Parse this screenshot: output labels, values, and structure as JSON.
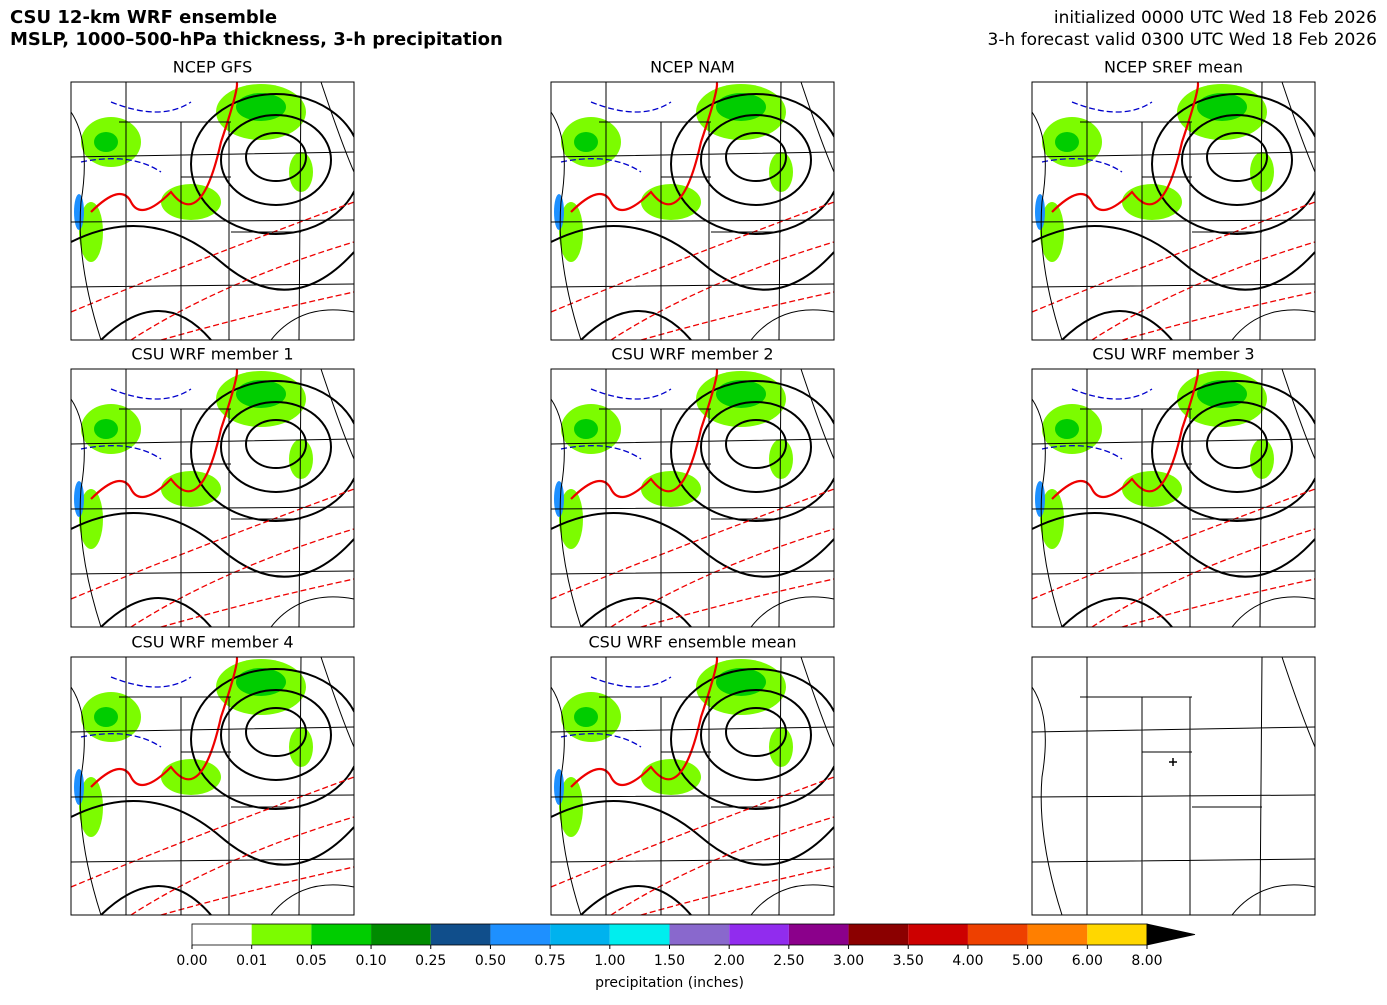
{
  "header": {
    "title_line1": "CSU 12-km WRF ensemble",
    "title_line2": "MSLP, 1000–500-hPa thickness, 3-h precipitation",
    "init": "initialized 0000 UTC Wed 18 Feb 2026",
    "valid": "3-h forecast valid 0300 UTC Wed 18 Feb 2026"
  },
  "panels": [
    {
      "title": "NCEP GFS"
    },
    {
      "title": "NCEP NAM"
    },
    {
      "title": "NCEP SREF mean"
    },
    {
      "title": "CSU WRF member 1"
    },
    {
      "title": "CSU WRF member 2"
    },
    {
      "title": "CSU WRF member 3"
    },
    {
      "title": "CSU WRF member 4"
    },
    {
      "title": "CSU WRF ensemble mean"
    }
  ],
  "chart_data": {
    "type": "colorbar",
    "xlabel": "precipitation (inches)",
    "ticks": [
      {
        "value": 0,
        "label": "0.00"
      },
      {
        "value": 0.01,
        "label": "0.01"
      },
      {
        "value": 0.05,
        "label": "0.05"
      },
      {
        "value": 0.1,
        "label": "0.10"
      },
      {
        "value": 0.25,
        "label": "0.25"
      },
      {
        "value": 0.5,
        "label": "0.50"
      },
      {
        "value": 0.75,
        "label": "0.75"
      },
      {
        "value": 1,
        "label": "1.00"
      },
      {
        "value": 1.5,
        "label": "1.50"
      },
      {
        "value": 2,
        "label": "2.00"
      },
      {
        "value": 2.5,
        "label": "2.50"
      },
      {
        "value": 3,
        "label": "3.00"
      },
      {
        "value": 3.5,
        "label": "3.50"
      },
      {
        "value": 4,
        "label": "4.00"
      },
      {
        "value": 5,
        "label": "5.00"
      },
      {
        "value": 6,
        "label": "6.00"
      },
      {
        "value": 8,
        "label": "8.00"
      }
    ],
    "colors": [
      "#ffffff",
      "#7cfc00",
      "#00cd00",
      "#008b00",
      "#104e8b",
      "#1e90ff",
      "#00b2ee",
      "#00eeee",
      "#8968cd",
      "#912cee",
      "#8b008b",
      "#8b0000",
      "#cd0000",
      "#ee4000",
      "#ff7f00",
      "#ffd700"
    ]
  }
}
